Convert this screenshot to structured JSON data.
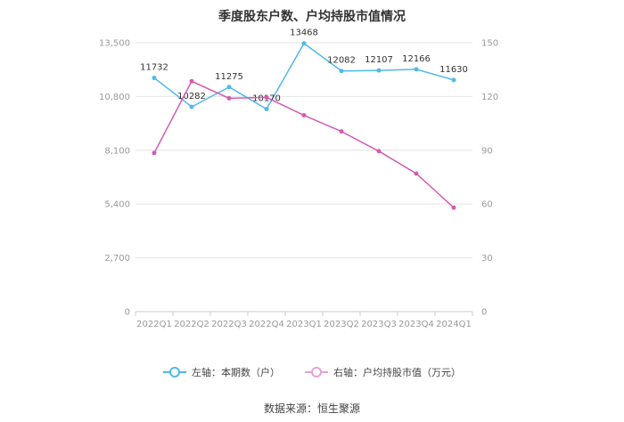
{
  "title": "季度股东户数、户均持股市值情况",
  "source": "数据来源：恒生聚源",
  "legend": {
    "left": "左轴：本期数（户）",
    "right": "右轴：户均持股市值（万元）"
  },
  "colors": {
    "left_series": "#4fb9ea",
    "right_series": "#d45cb2",
    "grid": "#e6e6e6",
    "axis": "#cccccc"
  },
  "chart_data": {
    "type": "line",
    "title": "季度股东户数、户均持股市值情况",
    "categories": [
      "2022Q1",
      "2022Q2",
      "2022Q3",
      "2022Q4",
      "2023Q1",
      "2023Q2",
      "2023Q3",
      "2023Q4",
      "2024Q1"
    ],
    "left_axis": {
      "ticks": [
        "0",
        "2,700",
        "5,400",
        "8,100",
        "10,800",
        "13,500"
      ],
      "ylim": [
        0,
        13500
      ]
    },
    "right_axis": {
      "ticks": [
        "0",
        "30",
        "60",
        "90",
        "120",
        "150"
      ],
      "ylim": [
        0,
        150
      ]
    },
    "series": [
      {
        "name": "左轴：本期数（户）",
        "axis": "left",
        "values": [
          11732,
          10282,
          11275,
          10170,
          13468,
          12082,
          12107,
          12166,
          11630
        ],
        "labels": [
          "11732",
          "10282",
          "11275",
          "10170",
          "13468",
          "12082",
          "12107",
          "12166",
          "11630"
        ]
      },
      {
        "name": "右轴：户均持股市值（万元）",
        "axis": "right",
        "values": [
          88.5,
          128.5,
          119.0,
          119.5,
          109.5,
          100.5,
          89.5,
          77.0,
          58.0
        ]
      }
    ],
    "grid": true,
    "legend_position": "bottom"
  }
}
